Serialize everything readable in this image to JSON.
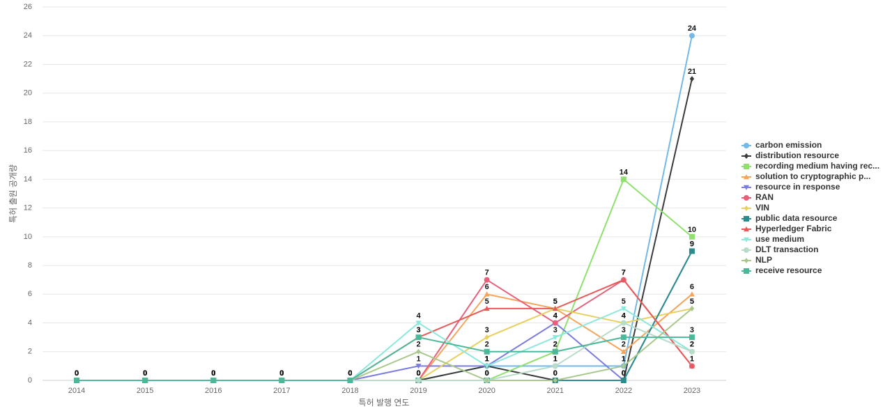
{
  "chart_data": {
    "type": "line",
    "x_label": "특허 발행 연도",
    "y_label": "특허 출원 공개량",
    "categories": [
      "2014",
      "2015",
      "2016",
      "2017",
      "2018",
      "2019",
      "2020",
      "2021",
      "2022",
      "2023"
    ],
    "ylim": [
      0,
      26
    ],
    "yticks": [
      0,
      2,
      4,
      6,
      8,
      10,
      12,
      14,
      16,
      18,
      20,
      22,
      24,
      26
    ],
    "grid": true,
    "legend": "right",
    "series": [
      {
        "name": "carbon emission",
        "color": "#73b8e6",
        "symbol": "circle",
        "values": [
          0,
          0,
          0,
          0,
          0,
          0,
          1,
          1,
          1,
          24
        ]
      },
      {
        "name": "distribution resource",
        "color": "#3a3a3a",
        "symbol": "diamond",
        "values": [
          0,
          0,
          0,
          0,
          0,
          0,
          1,
          0,
          0,
          21
        ]
      },
      {
        "name": "recording medium having rec...",
        "color": "#90e070",
        "symbol": "rect",
        "values": [
          0,
          0,
          0,
          0,
          0,
          0,
          0,
          2,
          14,
          10
        ]
      },
      {
        "name": "solution to cryptographic p...",
        "color": "#f5a55a",
        "symbol": "triangle",
        "values": [
          0,
          0,
          0,
          0,
          0,
          0,
          6,
          5,
          2,
          6
        ]
      },
      {
        "name": "resource in response",
        "color": "#7b7be0",
        "symbol": "triangle-down",
        "values": [
          0,
          0,
          0,
          0,
          0,
          1,
          1,
          4,
          0,
          9
        ]
      },
      {
        "name": "RAN",
        "color": "#e85f7a",
        "symbol": "circle",
        "values": [
          0,
          0,
          0,
          0,
          0,
          0,
          7,
          4,
          7,
          1
        ]
      },
      {
        "name": "VIN",
        "color": "#e8d060",
        "symbol": "diamond",
        "values": [
          0,
          0,
          0,
          0,
          0,
          0,
          3,
          5,
          4,
          5
        ]
      },
      {
        "name": "public data resource",
        "color": "#2a8c8c",
        "symbol": "rect",
        "values": [
          0,
          0,
          0,
          0,
          0,
          0,
          0,
          0,
          0,
          9
        ]
      },
      {
        "name": "Hyperledger Fabric",
        "color": "#e85a5a",
        "symbol": "triangle",
        "values": [
          0,
          0,
          0,
          0,
          0,
          3,
          5,
          5,
          7,
          1
        ]
      },
      {
        "name": "use medium",
        "color": "#8de8dc",
        "symbol": "triangle-down",
        "values": [
          0,
          0,
          0,
          0,
          0,
          4,
          1,
          3,
          5,
          2
        ]
      },
      {
        "name": "DLT transaction",
        "color": "#b8dcc8",
        "symbol": "circle",
        "values": [
          0,
          0,
          0,
          0,
          0,
          0,
          0,
          1,
          4,
          2
        ]
      },
      {
        "name": "NLP",
        "color": "#a8c88c",
        "symbol": "diamond",
        "values": [
          0,
          0,
          0,
          0,
          0,
          2,
          0,
          0,
          1,
          5
        ]
      },
      {
        "name": "receive resource",
        "color": "#4cb89a",
        "symbol": "rect",
        "values": [
          0,
          0,
          0,
          0,
          0,
          3,
          2,
          2,
          3,
          3
        ]
      }
    ]
  }
}
